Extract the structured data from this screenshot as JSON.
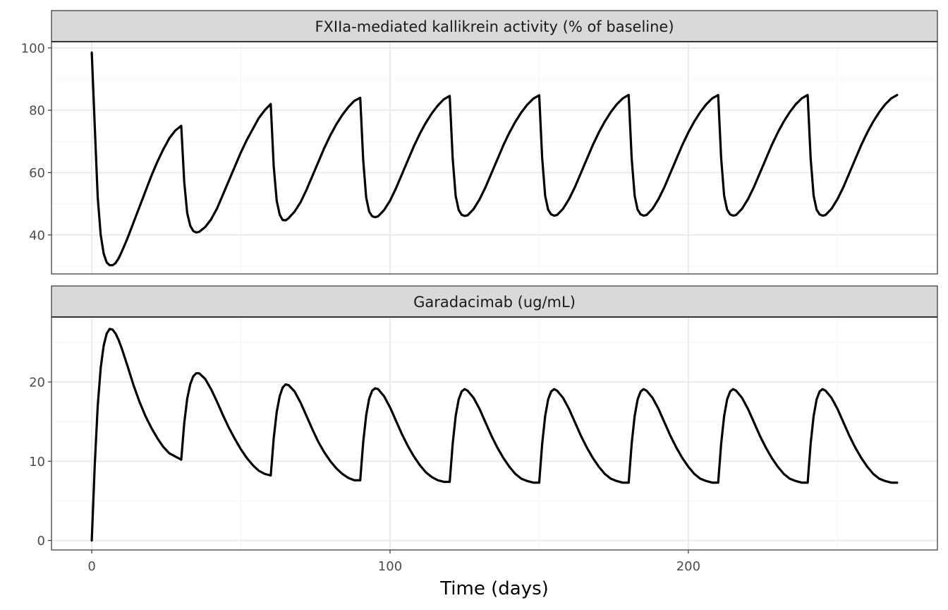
{
  "chart_data": {
    "type": "line",
    "xlabel": "Time (days)",
    "xlim": [
      -13.5,
      283.5
    ],
    "x_ticks": [
      0,
      100,
      200
    ],
    "x_tick_labels": [
      "0",
      "100",
      "200"
    ],
    "grid": true,
    "line_color": "#000000",
    "panels": [
      {
        "strip_label": "FXIIa-mediated kallikrein activity (% of baseline)",
        "ylim": [
          27.5,
          102
        ],
        "y_ticks": [
          40,
          60,
          80,
          100
        ],
        "y_tick_labels": [
          "40",
          "60",
          "80",
          "100"
        ],
        "series": [
          {
            "x": [
              0,
              1,
              2,
              3,
              4,
              5,
              6,
              7,
              8,
              9,
              10,
              12,
              14,
              16,
              18,
              20,
              22,
              24,
              26,
              28,
              30,
              31,
              32,
              33,
              34,
              35,
              36,
              38,
              40,
              42,
              44,
              46,
              48,
              50,
              52,
              54,
              56,
              58,
              60,
              61,
              62,
              63,
              64,
              65,
              66,
              68,
              70,
              72,
              74,
              76,
              78,
              80,
              82,
              84,
              86,
              88,
              90,
              91,
              92,
              93,
              94,
              95,
              96,
              98,
              100,
              102,
              104,
              106,
              108,
              110,
              112,
              114,
              116,
              118,
              120,
              121,
              122,
              123,
              124,
              125,
              126,
              128,
              130,
              132,
              134,
              136,
              138,
              140,
              142,
              144,
              146,
              148,
              150,
              151,
              152,
              153,
              154,
              155,
              156,
              158,
              160,
              162,
              164,
              166,
              168,
              170,
              172,
              174,
              176,
              178,
              180,
              181,
              182,
              183,
              184,
              185,
              186,
              188,
              190,
              192,
              194,
              196,
              198,
              200,
              202,
              204,
              206,
              208,
              210,
              211,
              212,
              213,
              214,
              215,
              216,
              218,
              220,
              222,
              224,
              226,
              228,
              230,
              232,
              234,
              236,
              238,
              240,
              241,
              242,
              243,
              244,
              245,
              246,
              248,
              250,
              252,
              254,
              256,
              258,
              260,
              262,
              264,
              266,
              268,
              270
            ],
            "y": [
              98.5,
              75,
              52,
              40,
              34,
              31.2,
              30.3,
              30.3,
              31,
              32.5,
              34.5,
              39,
              44,
              49,
              54,
              59,
              63.5,
              67.5,
              71,
              73.5,
              75,
              57,
              47,
              43,
              41.3,
              40.8,
              41,
              42.5,
              45,
              48.5,
              53,
              57.5,
              62,
              66.5,
              70.5,
              74,
              77.5,
              80,
              82,
              62,
              51,
              46.5,
              44.8,
              44.7,
              45.4,
              47.5,
              50.5,
              54.5,
              59,
              63.5,
              68,
              72,
              75.5,
              78.5,
              81,
              83,
              84,
              64,
              52,
              47.5,
              46,
              45.7,
              46,
              48,
              51,
              55,
              59.5,
              64,
              68.5,
              72.5,
              76,
              79,
              81.5,
              83.5,
              84.6,
              64.5,
              52.5,
              48,
              46.5,
              46.1,
              46.3,
              48.3,
              51.4,
              55.3,
              59.8,
              64.3,
              68.8,
              72.8,
              76.3,
              79.3,
              81.8,
              83.7,
              84.8,
              64.6,
              52.6,
              48.1,
              46.6,
              46.2,
              46.4,
              48.4,
              51.5,
              55.4,
              59.9,
              64.4,
              68.9,
              72.9,
              76.4,
              79.4,
              81.9,
              83.8,
              84.9,
              64.6,
              52.6,
              48.1,
              46.6,
              46.2,
              46.4,
              48.4,
              51.5,
              55.4,
              59.9,
              64.4,
              68.9,
              72.9,
              76.4,
              79.4,
              81.9,
              83.8,
              84.9,
              64.6,
              52.6,
              48.1,
              46.6,
              46.2,
              46.4,
              48.4,
              51.5,
              55.4,
              59.9,
              64.4,
              68.9,
              72.9,
              76.4,
              79.4,
              81.9,
              83.8,
              84.9,
              64.6,
              52.6,
              48.1,
              46.6,
              46.2,
              46.4,
              48.4,
              51.5,
              55.4,
              59.9,
              64.4,
              68.9,
              72.9,
              76.4,
              79.4,
              81.9,
              83.8,
              84.9
            ]
          }
        ]
      },
      {
        "strip_label": "Garadacimab (ug/mL)",
        "ylim": [
          -1.2,
          28.2
        ],
        "y_ticks": [
          0,
          10,
          20
        ],
        "y_tick_labels": [
          "0",
          "10",
          "20"
        ],
        "series": [
          {
            "x": [
              0,
              1,
              2,
              3,
              4,
              5,
              6,
              7,
              8,
              9,
              10,
              12,
              14,
              16,
              18,
              20,
              22,
              24,
              26,
              28,
              30,
              31,
              32,
              33,
              34,
              35,
              36,
              38,
              40,
              42,
              44,
              46,
              48,
              50,
              52,
              54,
              56,
              58,
              60,
              61,
              62,
              63,
              64,
              65,
              66,
              68,
              70,
              72,
              74,
              76,
              78,
              80,
              82,
              84,
              86,
              88,
              90,
              91,
              92,
              93,
              94,
              95,
              96,
              98,
              100,
              102,
              104,
              106,
              108,
              110,
              112,
              114,
              116,
              118,
              120,
              121,
              122,
              123,
              124,
              125,
              126,
              128,
              130,
              132,
              134,
              136,
              138,
              140,
              142,
              144,
              146,
              148,
              150,
              151,
              152,
              153,
              154,
              155,
              156,
              158,
              160,
              162,
              164,
              166,
              168,
              170,
              172,
              174,
              176,
              178,
              180,
              181,
              182,
              183,
              184,
              185,
              186,
              188,
              190,
              192,
              194,
              196,
              198,
              200,
              202,
              204,
              206,
              208,
              210,
              211,
              212,
              213,
              214,
              215,
              216,
              218,
              220,
              222,
              224,
              226,
              228,
              230,
              232,
              234,
              236,
              238,
              240,
              241,
              242,
              243,
              244,
              245,
              246,
              248,
              250,
              252,
              254,
              256,
              258,
              260,
              262,
              264,
              266,
              268,
              270
            ],
            "y": [
              0,
              9.5,
              17,
              21.8,
              24.6,
              26.1,
              26.7,
              26.6,
              26.1,
              25.3,
              24.3,
              22,
              19.6,
              17.5,
              15.7,
              14.2,
              12.9,
              11.8,
              11,
              10.6,
              10.2,
              14.8,
              17.9,
              19.7,
              20.7,
              21.1,
              21.1,
              20.4,
              19.1,
              17.5,
              15.8,
              14.2,
              12.8,
              11.5,
              10.4,
              9.5,
              8.8,
              8.4,
              8.2,
              12.9,
              16.2,
              18.2,
              19.3,
              19.7,
              19.6,
              18.8,
              17.4,
              15.7,
              14,
              12.4,
              11.1,
              10,
              9.1,
              8.4,
              7.9,
              7.6,
              7.6,
              12.4,
              15.8,
              17.9,
              18.9,
              19.2,
              19.1,
              18.2,
              16.8,
              15.1,
              13.4,
              11.9,
              10.6,
              9.5,
              8.6,
              8,
              7.6,
              7.4,
              7.4,
              12.2,
              15.7,
              17.8,
              18.8,
              19.1,
              18.9,
              18,
              16.6,
              14.9,
              13.2,
              11.7,
              10.4,
              9.3,
              8.4,
              7.8,
              7.5,
              7.3,
              7.3,
              12.2,
              15.7,
              17.8,
              18.8,
              19.1,
              18.9,
              18,
              16.6,
              14.9,
              13.2,
              11.7,
              10.4,
              9.3,
              8.4,
              7.8,
              7.5,
              7.3,
              7.3,
              12.2,
              15.7,
              17.8,
              18.8,
              19.1,
              18.9,
              18,
              16.6,
              14.9,
              13.2,
              11.7,
              10.4,
              9.3,
              8.4,
              7.8,
              7.5,
              7.3,
              7.3,
              12.2,
              15.7,
              17.8,
              18.8,
              19.1,
              18.9,
              18,
              16.6,
              14.9,
              13.2,
              11.7,
              10.4,
              9.3,
              8.4,
              7.8,
              7.5,
              7.3,
              7.3,
              12.2,
              15.7,
              17.8,
              18.8,
              19.1,
              18.9,
              18,
              16.6,
              14.9,
              13.2,
              11.7,
              10.4,
              9.3,
              8.4,
              7.8,
              7.5,
              7.3,
              7.3
            ]
          }
        ]
      }
    ]
  }
}
